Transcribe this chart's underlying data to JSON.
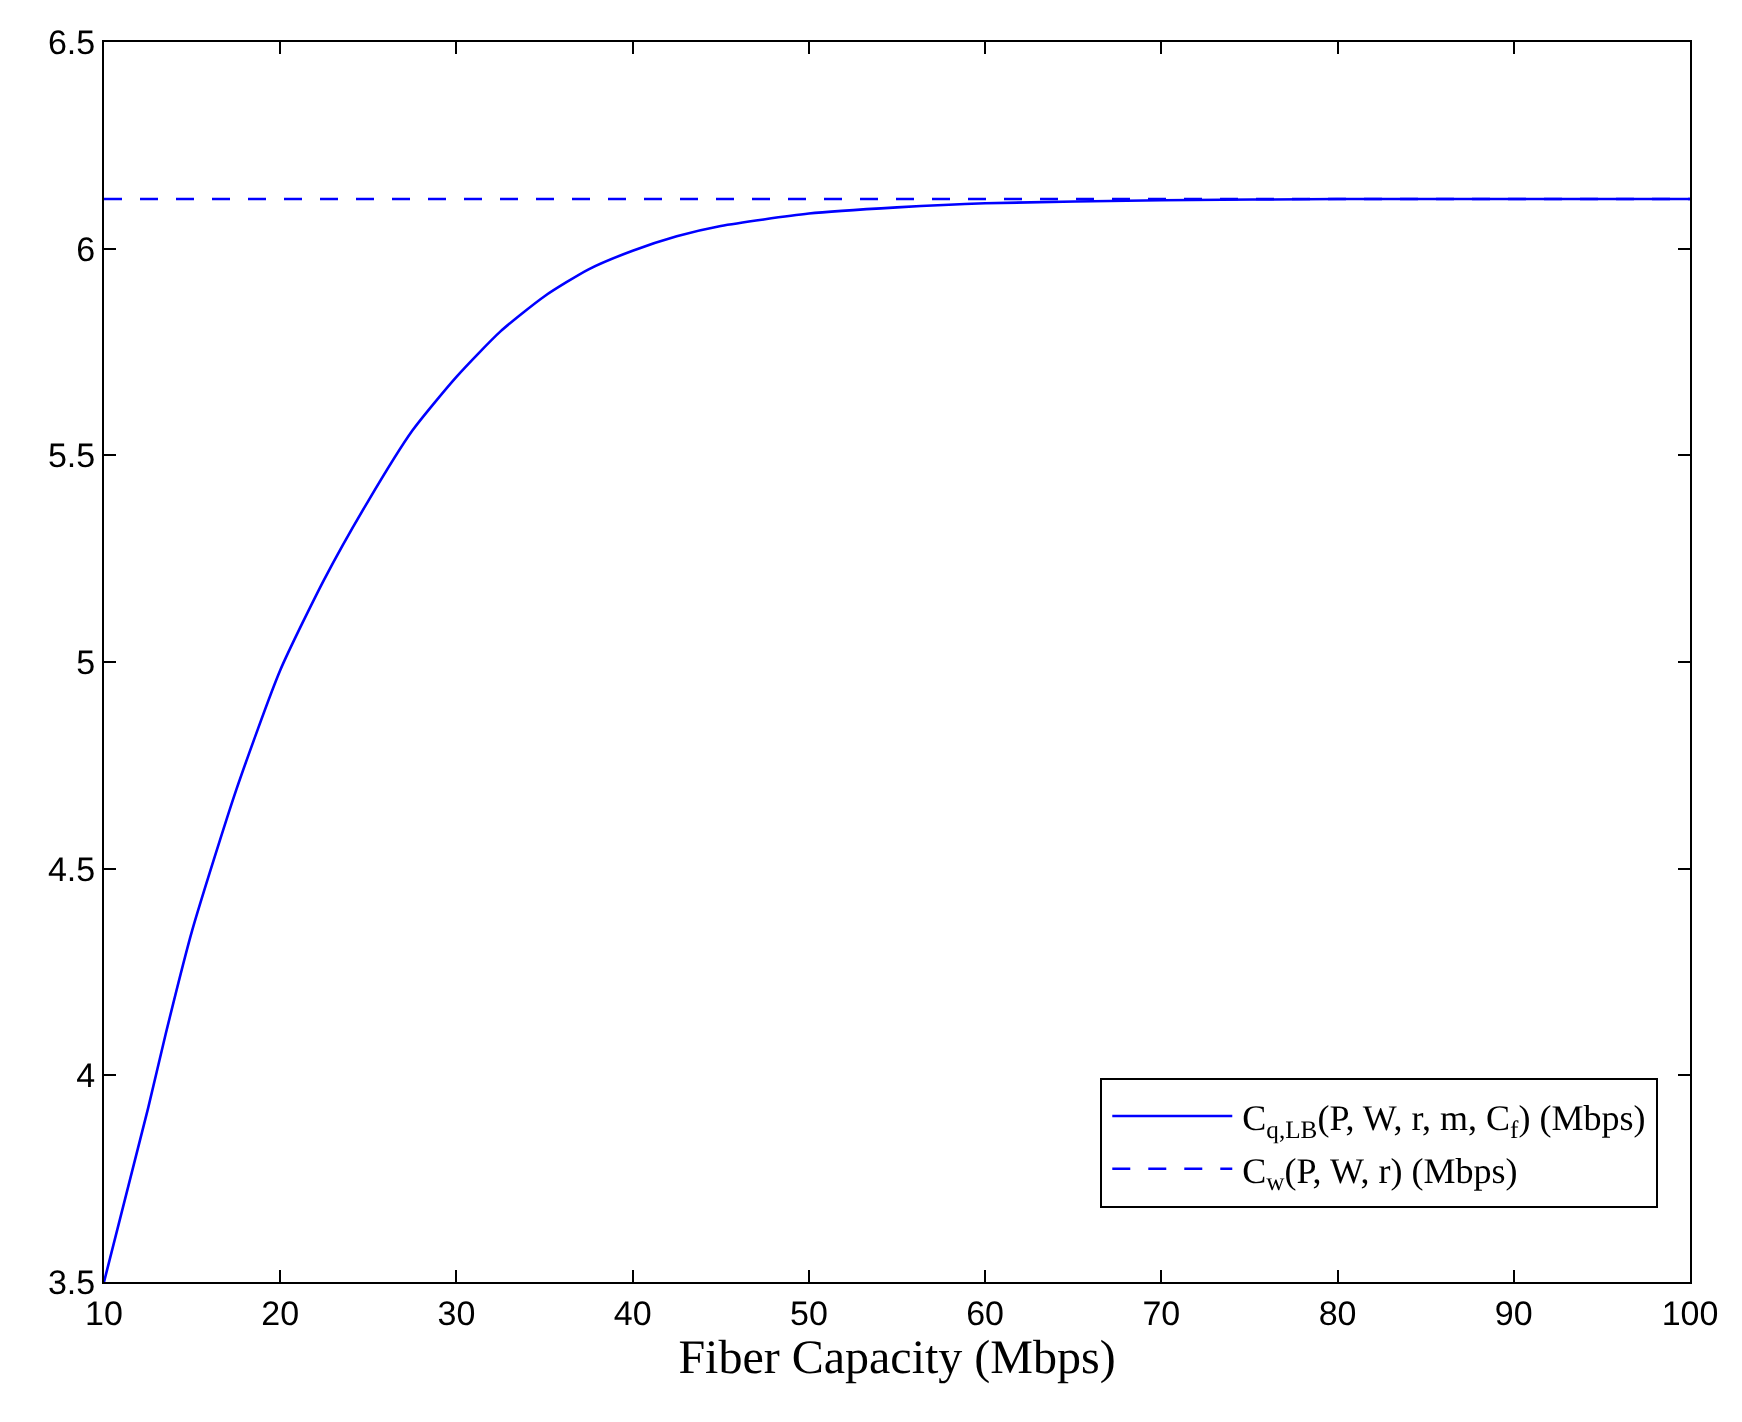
{
  "chart_data": {
    "type": "line",
    "xlabel": "Fiber Capacity (Mbps)",
    "xlim": [
      10,
      100
    ],
    "xticks": [
      10,
      20,
      30,
      40,
      50,
      60,
      70,
      80,
      90,
      100
    ],
    "ylim": [
      3.5,
      6.5
    ],
    "yticks": [
      3.5,
      4,
      4.5,
      5,
      5.5,
      6,
      6.5
    ],
    "legend": "bottom right",
    "marker": "none",
    "series": [
      {
        "name": "C$_{q,LB}$(P, W, r, m, C$_{f}$) (Mbps)",
        "color": "#0000ff",
        "line_style": "solid",
        "x": [
          10,
          12.5,
          13.5,
          15,
          17.5,
          20,
          22.5,
          25,
          27.5,
          30,
          32.5,
          35,
          37.5,
          40,
          42.5,
          45,
          50,
          55,
          60,
          70,
          80,
          100
        ],
        "values": [
          3.5,
          3.92,
          4.1,
          4.35,
          4.69,
          4.98,
          5.2,
          5.39,
          5.56,
          5.69,
          5.8,
          5.885,
          5.95,
          5.995,
          6.03,
          6.055,
          6.085,
          6.1,
          6.11,
          6.117,
          6.12,
          6.12
        ]
      },
      {
        "name": "C$_{w}$(P, W, r) (Mbps)",
        "color": "#0000ff",
        "line_style": "dashed",
        "x": [
          10,
          100
        ],
        "values": [
          6.12,
          6.12
        ]
      }
    ]
  }
}
